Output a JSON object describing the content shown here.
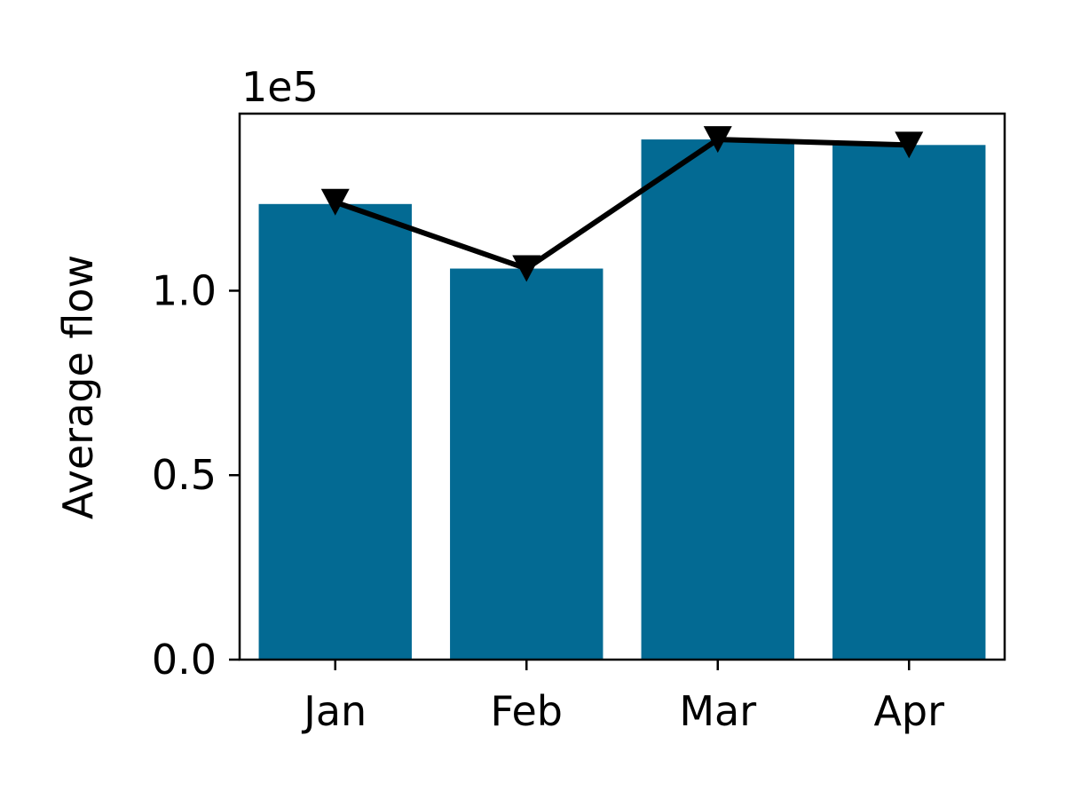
{
  "chart_data": {
    "type": "bar",
    "categories": [
      "Jan",
      "Feb",
      "Mar",
      "Apr"
    ],
    "series": [
      {
        "type": "bar",
        "values": [
          123500,
          106000,
          141000,
          139500
        ]
      },
      {
        "type": "line",
        "marker": "triangle-down",
        "values": [
          124000,
          106000,
          141000,
          139500
        ]
      }
    ],
    "title": "",
    "xlabel": "",
    "ylabel": "Average flow",
    "ylim": [
      0,
      148000
    ],
    "yticks": [
      0,
      50000,
      100000
    ],
    "ytick_labels": [
      "0.0",
      "0.5",
      "1.0"
    ],
    "y_offset_label": "1e5",
    "grid": false,
    "legend": "none",
    "colors": {
      "bar": "#036a93",
      "line": "#000000"
    }
  }
}
